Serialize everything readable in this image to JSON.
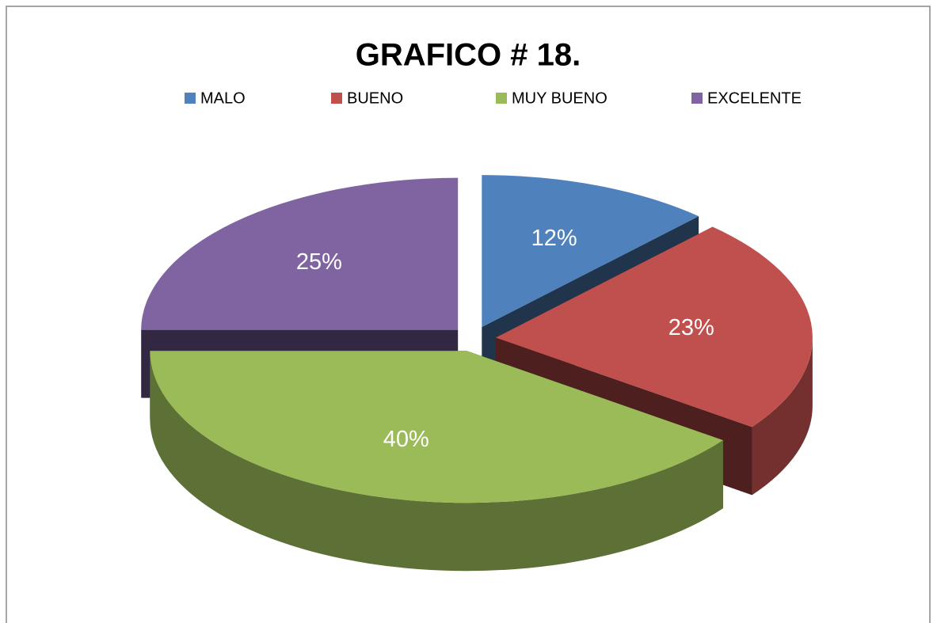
{
  "chart_data": {
    "type": "pie",
    "title": "GRAFICO # 18.",
    "categories": [
      "MALO",
      "BUENO",
      "MUY BUENO",
      "EXCELENTE"
    ],
    "values": [
      12,
      23,
      40,
      25
    ],
    "value_labels": [
      "12%",
      "23%",
      "40%",
      "25%"
    ],
    "colors": [
      "#4f81bd",
      "#c0504d",
      "#9bbb59",
      "#8064a2"
    ],
    "legend": "top"
  }
}
